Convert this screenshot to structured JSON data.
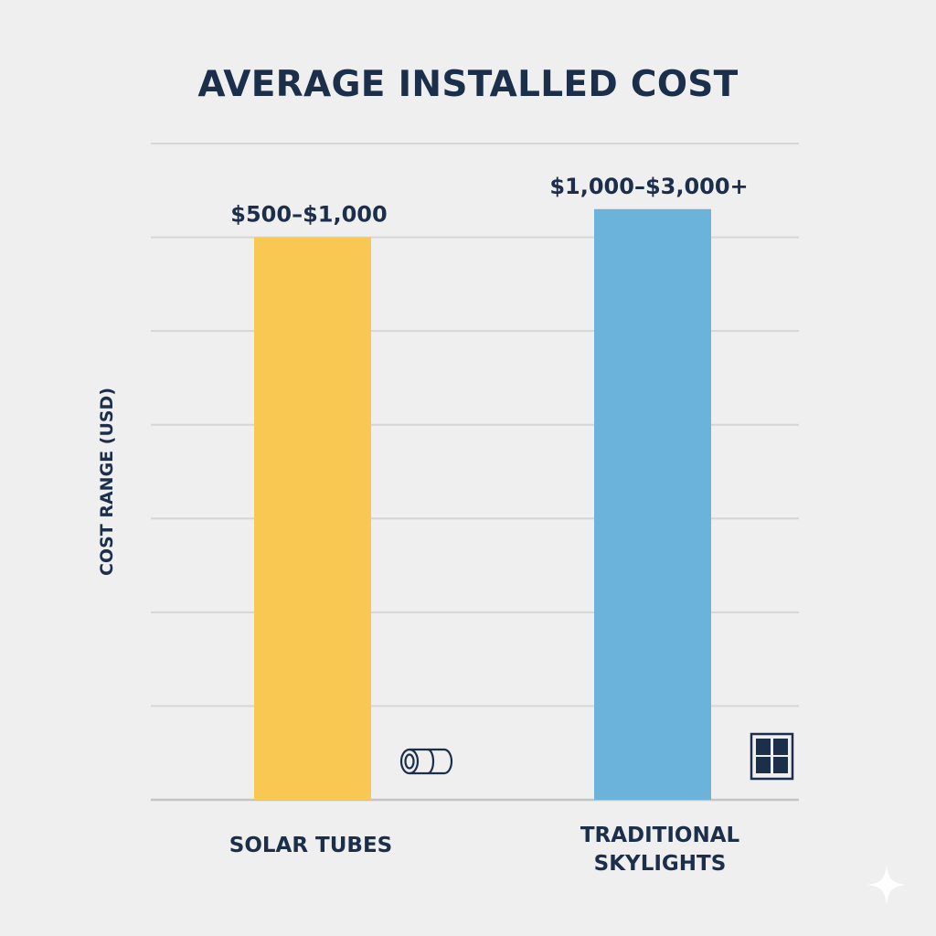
{
  "chart_data": {
    "type": "bar",
    "title": "AVERAGE INSTALLED COST",
    "ylabel": "COST RANGE (USD)",
    "xlabel": "",
    "categories": [
      "SOLAR TUBES",
      "TRADITIONAL\nSKYLIGHTS"
    ],
    "values": [
      6,
      6.3
    ],
    "range_labels": [
      "$500–$1,000",
      "$1,000–$3,000+"
    ],
    "colors": [
      "#f8c853",
      "#6cb3dc"
    ],
    "icons": [
      "tube-icon",
      "window-icon"
    ],
    "ylim": [
      0,
      7
    ],
    "grid": true,
    "y_tick_labels_shown": false
  }
}
